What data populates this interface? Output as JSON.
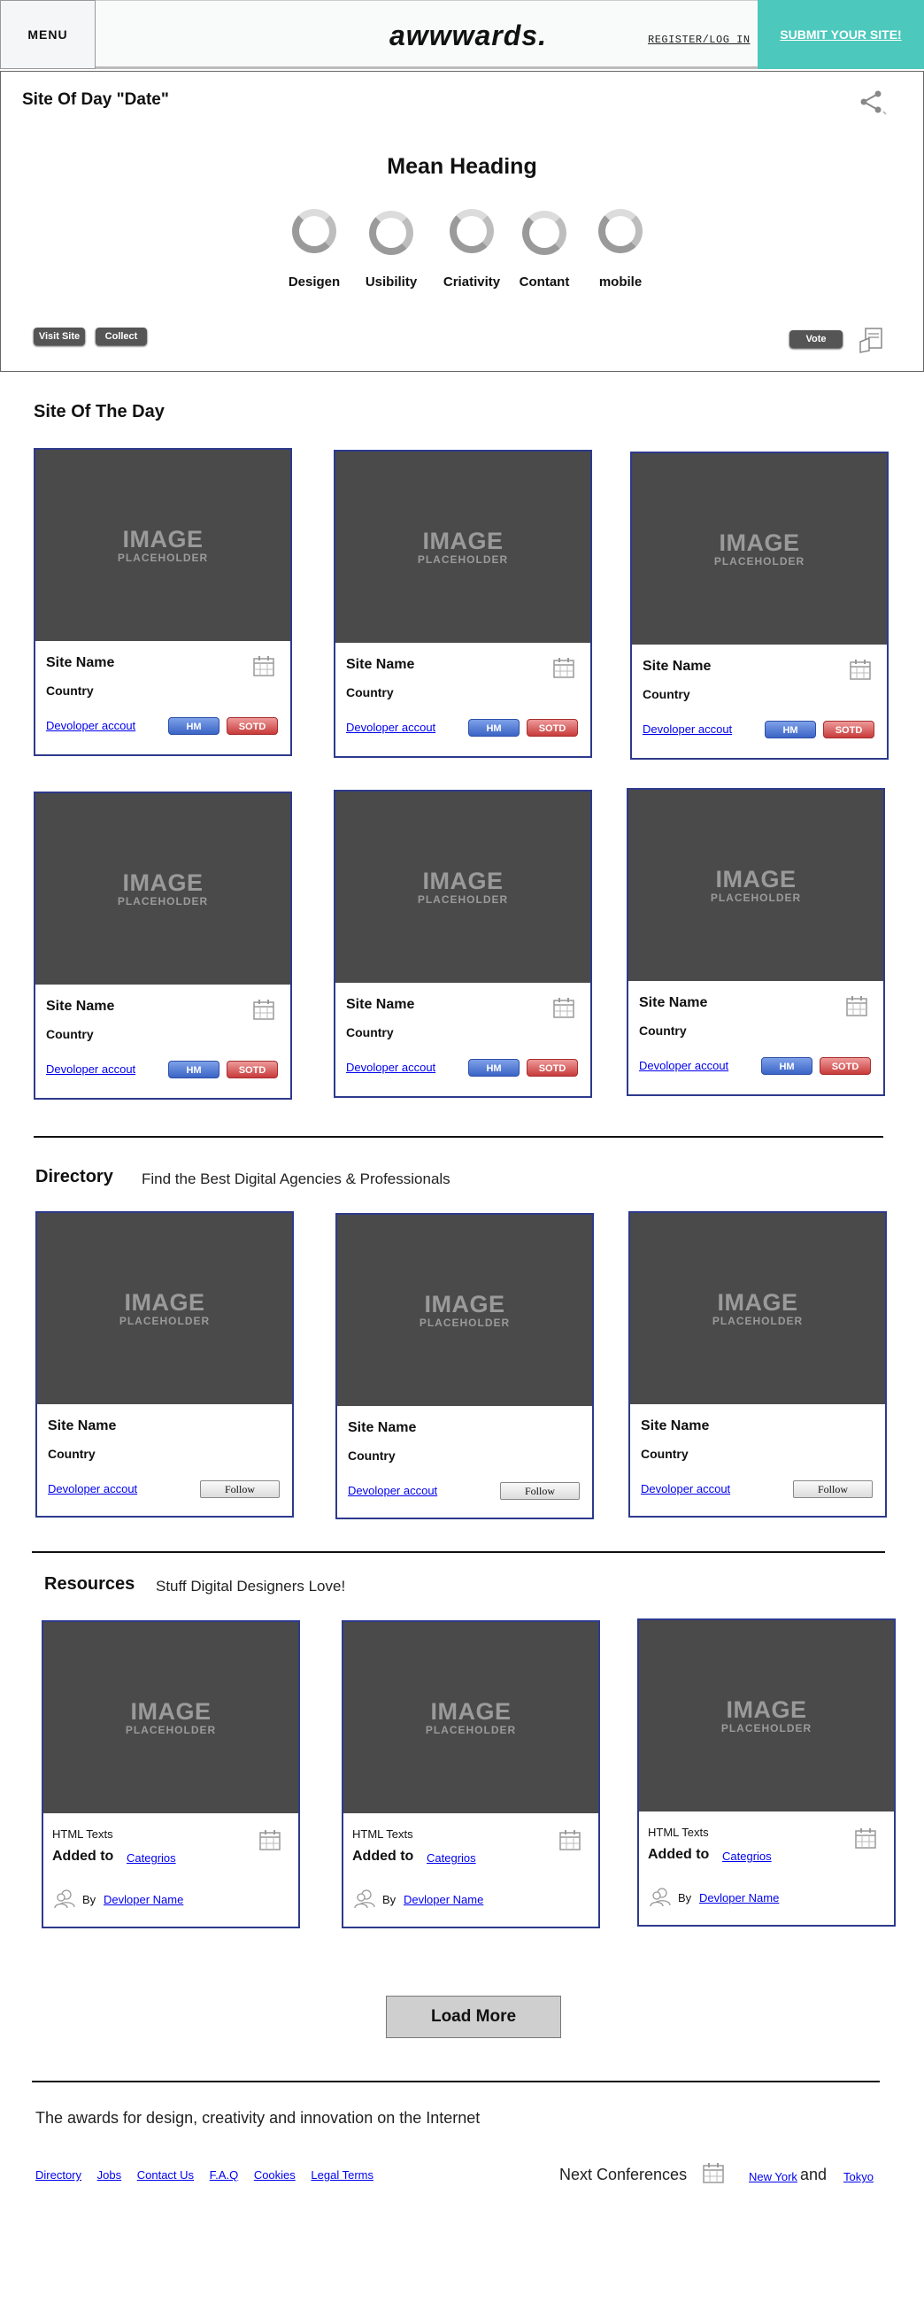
{
  "header": {
    "menu": "MENU",
    "logo": "awwwards.",
    "register": "REGISTER/LOG IN",
    "submit": "SUBMIT YOUR SITE!"
  },
  "sotd_panel": {
    "title": "Site Of Day \"Date\"",
    "heading": "Mean Heading",
    "ratings": [
      "Desigen",
      "Usibility",
      "Criativity",
      "Contant",
      "mobile"
    ],
    "visit": "Visit Site",
    "collect": "Collect",
    "vote": "Vote"
  },
  "sotd_section": {
    "title": "Site Of The Day",
    "cards": [
      {
        "image_big": "IMAGE",
        "image_small": "PLACEHOLDER",
        "name": "Site Name",
        "country": "Country",
        "developer": "Devoloper accout",
        "hm": "HM",
        "sotd": "SOTD"
      },
      {
        "image_big": "IMAGE",
        "image_small": "PLACEHOLDER",
        "name": "Site Name",
        "country": "Country",
        "developer": "Devoloper accout",
        "hm": "HM",
        "sotd": "SOTD"
      },
      {
        "image_big": "IMAGE",
        "image_small": "PLACEHOLDER",
        "name": "Site Name",
        "country": "Country",
        "developer": "Devoloper accout",
        "hm": "HM",
        "sotd": "SOTD"
      },
      {
        "image_big": "IMAGE",
        "image_small": "PLACEHOLDER",
        "name": "Site Name",
        "country": "Country",
        "developer": "Devoloper accout",
        "hm": "HM",
        "sotd": "SOTD"
      },
      {
        "image_big": "IMAGE",
        "image_small": "PLACEHOLDER",
        "name": "Site Name",
        "country": "Country",
        "developer": "Devoloper accout",
        "hm": "HM",
        "sotd": "SOTD"
      },
      {
        "image_big": "IMAGE",
        "image_small": "PLACEHOLDER",
        "name": "Site Name",
        "country": "Country",
        "developer": "Devoloper accout",
        "hm": "HM",
        "sotd": "SOTD"
      }
    ]
  },
  "directory": {
    "title": "Directory",
    "subtitle": "Find the Best Digital Agencies & Professionals",
    "cards": [
      {
        "image_big": "IMAGE",
        "image_small": "PLACEHOLDER",
        "name": "Site Name",
        "country": "Country",
        "developer": "Devoloper accout",
        "follow": "Follow"
      },
      {
        "image_big": "IMAGE",
        "image_small": "PLACEHOLDER",
        "name": "Site Name",
        "country": "Country",
        "developer": "Devoloper accout",
        "follow": "Follow"
      },
      {
        "image_big": "IMAGE",
        "image_small": "PLACEHOLDER",
        "name": "Site Name",
        "country": "Country",
        "developer": "Devoloper accout",
        "follow": "Follow"
      }
    ]
  },
  "resources": {
    "title": "Resources",
    "subtitle": "Stuff Digital Designers Love!",
    "cards": [
      {
        "image_big": "IMAGE",
        "image_small": "PLACEHOLDER",
        "type": "HTML Texts",
        "added_to": "Added to",
        "category": "Categrios",
        "by": "By",
        "developer": "Devloper Name"
      },
      {
        "image_big": "IMAGE",
        "image_small": "PLACEHOLDER",
        "type": "HTML Texts",
        "added_to": "Added to",
        "category": "Categrios",
        "by": "By",
        "developer": "Devloper Name"
      },
      {
        "image_big": "IMAGE",
        "image_small": "PLACEHOLDER",
        "type": "HTML Texts",
        "added_to": "Added to",
        "category": "Categrios",
        "by": "By",
        "developer": "Devloper Name"
      }
    ]
  },
  "load_more": "Load More",
  "footer": {
    "tagline": "The awards for design, creativity and innovation on the Internet",
    "links": [
      "Directory",
      "Jobs",
      "Contact Us",
      "F.A.Q",
      "Cookies",
      "Legal Terms"
    ],
    "next_conferences": "Next Conferences",
    "city1": "New York",
    "and": "and",
    "city2": "Tokyo"
  },
  "colors": {
    "accent": "#4cc8bc",
    "card_border": "#2d3a8c",
    "placeholder_bg": "#4a4a4a",
    "hm_blue": "#3b64c6",
    "sotd_red": "#c83b3b"
  }
}
